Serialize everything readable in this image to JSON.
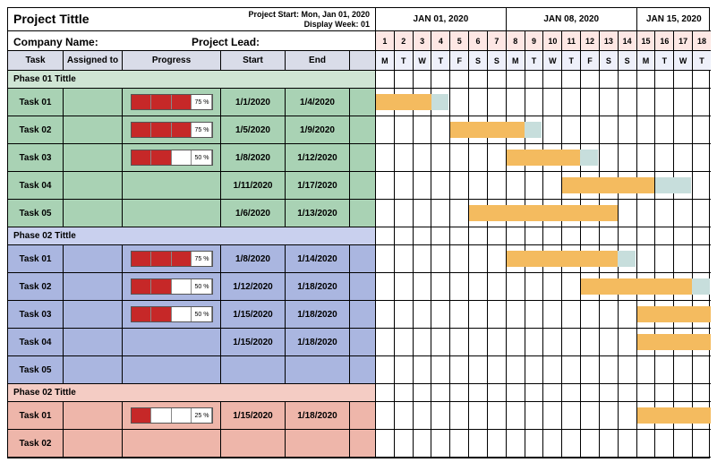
{
  "header": {
    "project_title": "Project Tittle",
    "project_start_label": "Project Start: Mon, Jan 01, 2020",
    "display_week_label": "Display Week: 01",
    "company_label": "Company Name:",
    "lead_label": "Project Lead:"
  },
  "columns": {
    "task": "Task",
    "assigned": "Assigned to",
    "progress": "Progress",
    "start": "Start",
    "end": "End"
  },
  "colors": {
    "phase1_header_bg": "#cfe5d4",
    "phase1_row_bg": "#a9d2b4",
    "phase2_header_bg": "#c9d0ee",
    "phase2_row_bg": "#aab6e0",
    "phase3_header_bg": "#f4ccc4",
    "phase3_row_bg": "#eeb6aa",
    "progress_fill": "#c62828",
    "bar_done": "#f4bb5f",
    "bar_remain": "#c7dedc",
    "daynum_bg": "#fde7e4",
    "dayname_bg": "#eef0fa",
    "col_header_bg": "#d9dce8"
  },
  "timeline": {
    "day_count": 18,
    "weeks": [
      {
        "label": "JAN 01, 2020",
        "span": 7
      },
      {
        "label": "JAN 08, 2020",
        "span": 7
      },
      {
        "label": "JAN 15, 2020",
        "span": 4
      }
    ],
    "day_numbers": [
      "1",
      "2",
      "3",
      "4",
      "5",
      "6",
      "7",
      "8",
      "9",
      "10",
      "11",
      "12",
      "13",
      "14",
      "15",
      "16",
      "17",
      "18"
    ],
    "day_names": [
      "M",
      "T",
      "W",
      "T",
      "F",
      "S",
      "S",
      "M",
      "T",
      "W",
      "T",
      "F",
      "S",
      "S",
      "M",
      "T",
      "W",
      "T"
    ]
  },
  "phases": [
    {
      "title": "Phase 01 Tittle",
      "header_bg": "#cfe5d4",
      "row_bg": "#a9d2b4",
      "tasks": [
        {
          "name": "Task 01",
          "assigned": "",
          "progress": 75,
          "start": "1/1/2020",
          "end": "1/4/2020",
          "bar_start": 1,
          "bar_len": 4,
          "remain": 1
        },
        {
          "name": "Task 02",
          "assigned": "",
          "progress": 75,
          "start": "1/5/2020",
          "end": "1/9/2020",
          "bar_start": 5,
          "bar_len": 5,
          "remain": 1
        },
        {
          "name": "Task 03",
          "assigned": "",
          "progress": 50,
          "start": "1/8/2020",
          "end": "1/12/2020",
          "bar_start": 8,
          "bar_len": 5,
          "remain": 1
        },
        {
          "name": "Task 04",
          "assigned": "",
          "progress": null,
          "start": "1/11/2020",
          "end": "1/17/2020",
          "bar_start": 11,
          "bar_len": 7,
          "remain": 2
        },
        {
          "name": "Task 05",
          "assigned": "",
          "progress": null,
          "start": "1/6/2020",
          "end": "1/13/2020",
          "bar_start": 6,
          "bar_len": 8,
          "remain": 0
        }
      ]
    },
    {
      "title": "Phase 02 Tittle",
      "header_bg": "#c9d0ee",
      "row_bg": "#aab6e0",
      "tasks": [
        {
          "name": "Task 01",
          "assigned": "",
          "progress": 75,
          "start": "1/8/2020",
          "end": "1/14/2020",
          "bar_start": 8,
          "bar_len": 7,
          "remain": 1
        },
        {
          "name": "Task 02",
          "assigned": "",
          "progress": 50,
          "start": "1/12/2020",
          "end": "1/18/2020",
          "bar_start": 12,
          "bar_len": 7,
          "remain": 1
        },
        {
          "name": "Task 03",
          "assigned": "",
          "progress": 50,
          "start": "1/15/2020",
          "end": "1/18/2020",
          "bar_start": 15,
          "bar_len": 4,
          "remain": 0
        },
        {
          "name": "Task 04",
          "assigned": "",
          "progress": null,
          "start": "1/15/2020",
          "end": "1/18/2020",
          "bar_start": 15,
          "bar_len": 4,
          "remain": 0
        },
        {
          "name": "Task 05",
          "assigned": "",
          "progress": null,
          "start": "",
          "end": "",
          "bar_start": null,
          "bar_len": 0,
          "remain": 0
        }
      ]
    },
    {
      "title": "Phase 02 Tittle",
      "header_bg": "#f4ccc4",
      "row_bg": "#eeb6aa",
      "tasks": [
        {
          "name": "Task 01",
          "assigned": "",
          "progress": 25,
          "start": "1/15/2020",
          "end": "1/18/2020",
          "bar_start": 15,
          "bar_len": 4,
          "remain": 0
        },
        {
          "name": "Task 02",
          "assigned": "",
          "progress": null,
          "start": "",
          "end": "",
          "bar_start": null,
          "bar_len": 0,
          "remain": 0
        }
      ]
    }
  ]
}
